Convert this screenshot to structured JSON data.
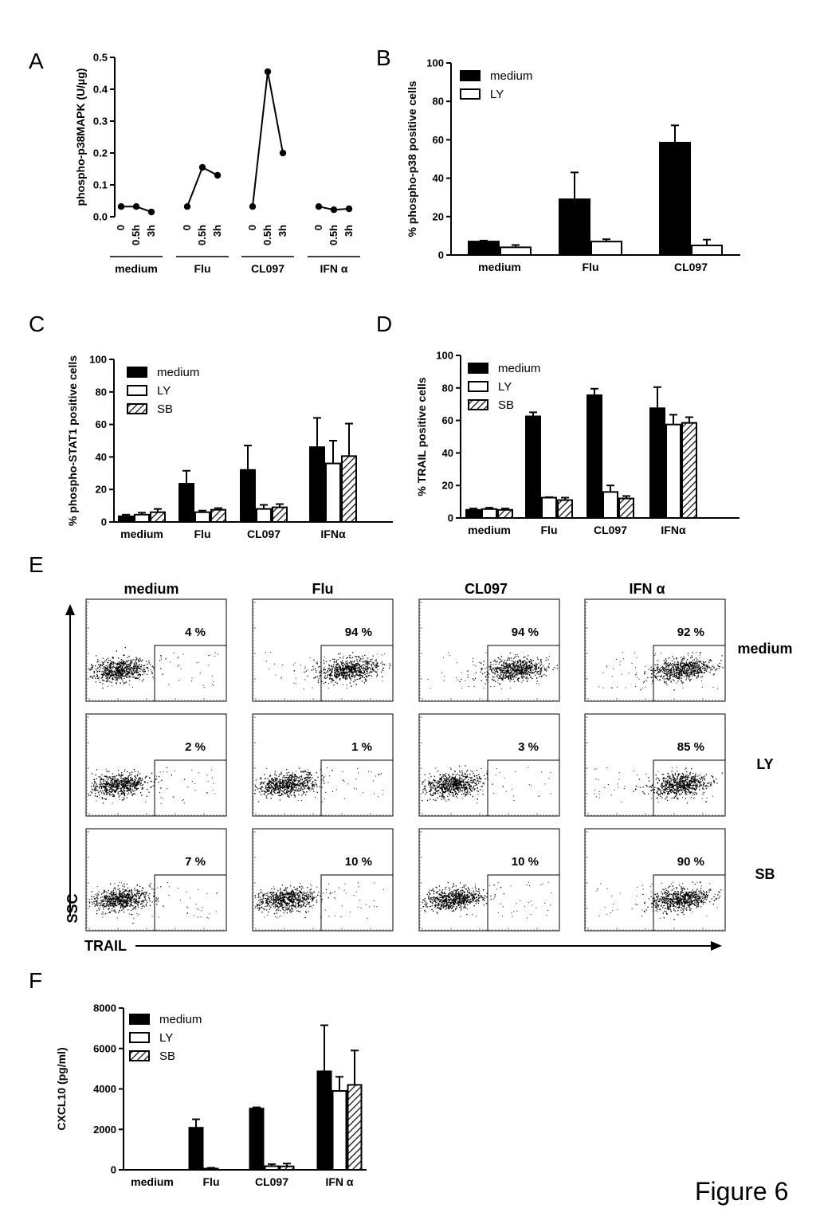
{
  "figure_label": "Figure 6",
  "chart_data": [
    {
      "panel": "A",
      "type": "line",
      "ylabel": "phospho-p38MAPK (U/µg)",
      "ylim": [
        0,
        0.5
      ],
      "yticks": [
        "0.0",
        "0.1",
        "0.2",
        "0.3",
        "0.4",
        "0.5"
      ],
      "timepoints": [
        "0",
        "0.5h",
        "3h"
      ],
      "groups": [
        {
          "name": "medium",
          "values": [
            0.032,
            0.032,
            0.015
          ]
        },
        {
          "name": "Flu",
          "values": [
            0.032,
            0.155,
            0.13
          ]
        },
        {
          "name": "CL097",
          "values": [
            0.032,
            0.455,
            0.2
          ]
        },
        {
          "name": "IFN α",
          "values": [
            0.032,
            0.022,
            0.025
          ]
        }
      ]
    },
    {
      "panel": "B",
      "type": "bar",
      "ylabel": "% phospho-p38 positive cells",
      "ylim": [
        0,
        100
      ],
      "yticks": [
        "0",
        "20",
        "40",
        "60",
        "80",
        "100"
      ],
      "categories": [
        "medium",
        "Flu",
        "CL097"
      ],
      "series": [
        {
          "name": "medium",
          "fill": "solid",
          "values": [
            7,
            29,
            58.5
          ],
          "errors": [
            0.5,
            14,
            9
          ]
        },
        {
          "name": "LY",
          "fill": "open",
          "values": [
            4,
            7,
            5
          ],
          "errors": [
            1.2,
            1.2,
            3
          ]
        }
      ],
      "legend": "top-left"
    },
    {
      "panel": "C",
      "type": "bar",
      "ylabel": "% phospho-STAT1 positive cells",
      "ylim": [
        0,
        100
      ],
      "yticks": [
        "0",
        "20",
        "40",
        "60",
        "80",
        "100"
      ],
      "categories": [
        "medium",
        "Flu",
        "CL097",
        "IFNα"
      ],
      "series": [
        {
          "name": "medium",
          "fill": "solid",
          "values": [
            3.5,
            23.5,
            32,
            46
          ],
          "errors": [
            1,
            8,
            15,
            18
          ]
        },
        {
          "name": "LY",
          "fill": "open",
          "values": [
            4.5,
            6,
            8,
            36
          ],
          "errors": [
            1.2,
            1,
            2.5,
            14
          ]
        },
        {
          "name": "SB",
          "fill": "hatch",
          "values": [
            6,
            7.5,
            9,
            40.5
          ],
          "errors": [
            2,
            1,
            2,
            20
          ]
        }
      ],
      "legend": "top-left"
    },
    {
      "panel": "D",
      "type": "bar",
      "ylabel": "% TRAIL positive cells",
      "ylim": [
        0,
        100
      ],
      "yticks": [
        "0",
        "20",
        "40",
        "60",
        "80",
        "100"
      ],
      "categories": [
        "medium",
        "Flu",
        "CL097",
        "IFNα"
      ],
      "series": [
        {
          "name": "medium",
          "fill": "solid",
          "values": [
            5,
            62.5,
            75.5,
            67.5
          ],
          "errors": [
            0.8,
            2.5,
            4,
            13
          ]
        },
        {
          "name": "LY",
          "fill": "open",
          "values": [
            5.5,
            12.5,
            16,
            57.5
          ],
          "errors": [
            0.8,
            0.3,
            4,
            6
          ]
        },
        {
          "name": "SB",
          "fill": "hatch",
          "values": [
            5,
            11,
            12,
            58.5
          ],
          "errors": [
            0.8,
            1.5,
            1.5,
            3.5
          ]
        }
      ],
      "legend": "top-left"
    },
    {
      "panel": "E",
      "type": "scatter",
      "xlabel": "TRAIL",
      "ylabel": "SSC",
      "columns": [
        "medium",
        "Flu",
        "CL097",
        "IFN α"
      ],
      "rows": [
        "medium",
        "LY",
        "SB"
      ],
      "percentages": [
        [
          "4 %",
          "94 %",
          "94 %",
          "92 %"
        ],
        [
          "2 %",
          "1 %",
          "3 %",
          "85 %"
        ],
        [
          "7 %",
          "10 %",
          "10 %",
          "90 %"
        ]
      ]
    },
    {
      "panel": "F",
      "type": "bar",
      "ylabel": "CXCL10 (pg/ml)",
      "ylim": [
        0,
        8000
      ],
      "yticks": [
        "0",
        "2000",
        "4000",
        "6000",
        "8000"
      ],
      "categories": [
        "medium",
        "Flu",
        "CL097",
        "IFN α"
      ],
      "series": [
        {
          "name": "medium",
          "fill": "solid",
          "values": [
            0,
            2080,
            3030,
            4870
          ],
          "errors": [
            0,
            420,
            60,
            2280
          ]
        },
        {
          "name": "LY",
          "fill": "open",
          "values": [
            0,
            60,
            180,
            3900
          ],
          "errors": [
            0,
            40,
            100,
            700
          ]
        },
        {
          "name": "SB",
          "fill": "hatch",
          "values": [
            0,
            0,
            170,
            4200
          ],
          "errors": [
            0,
            0,
            140,
            1700
          ]
        }
      ],
      "legend": "top-left"
    }
  ]
}
